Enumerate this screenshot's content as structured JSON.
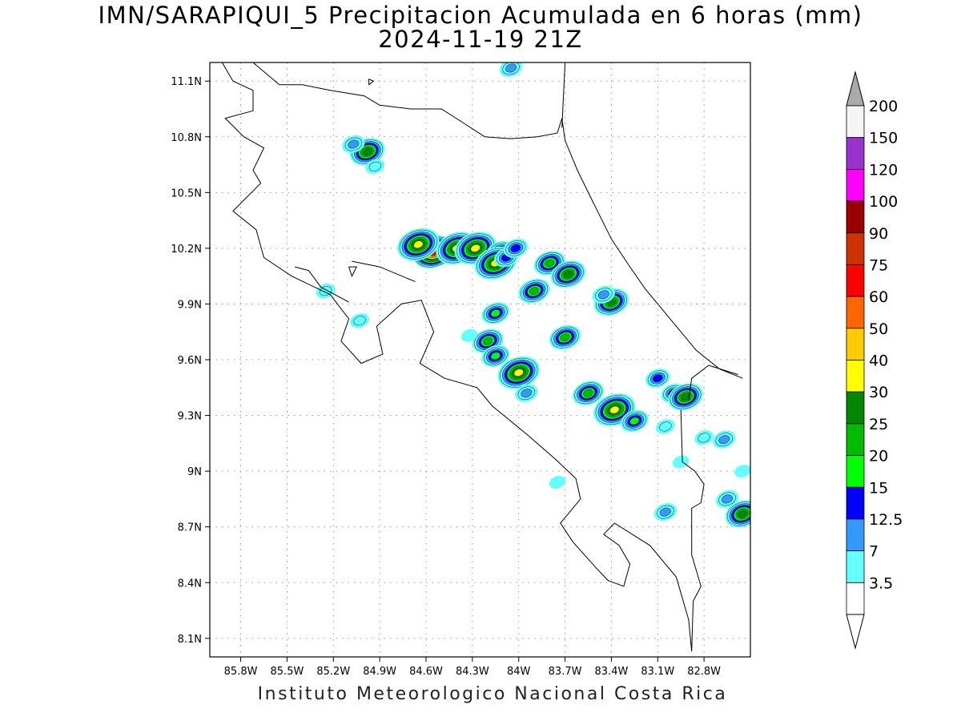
{
  "title": {
    "line1": "IMN/SARAPIQUI_5 Precipitacion Acumulada en 6 horas (mm)",
    "line2": "2024-11-19 21Z"
  },
  "footer": "Instituto Meteorologico Nacional Costa Rica",
  "map": {
    "lon_range": [
      -86.0,
      -82.5
    ],
    "lat_range": [
      8.0,
      11.2
    ],
    "lon_ticks": [
      {
        "value": -85.8,
        "label": "85.8W"
      },
      {
        "value": -85.5,
        "label": "85.5W"
      },
      {
        "value": -85.2,
        "label": "85.2W"
      },
      {
        "value": -84.9,
        "label": "84.9W"
      },
      {
        "value": -84.6,
        "label": "84.6W"
      },
      {
        "value": -84.3,
        "label": "84.3W"
      },
      {
        "value": -84.0,
        "label": "84W"
      },
      {
        "value": -83.7,
        "label": "83.7W"
      },
      {
        "value": -83.4,
        "label": "83.4W"
      },
      {
        "value": -83.1,
        "label": "83.1W"
      },
      {
        "value": -82.8,
        "label": "82.8W"
      }
    ],
    "lat_ticks": [
      {
        "value": 11.1,
        "label": "11.1N"
      },
      {
        "value": 10.8,
        "label": "10.8N"
      },
      {
        "value": 10.5,
        "label": "10.5N"
      },
      {
        "value": 10.2,
        "label": "10.2N"
      },
      {
        "value": 9.9,
        "label": "9.9N"
      },
      {
        "value": 9.6,
        "label": "9.6N"
      },
      {
        "value": 9.3,
        "label": "9.3N"
      },
      {
        "value": 9.0,
        "label": "9N"
      },
      {
        "value": 8.7,
        "label": "8.7N"
      },
      {
        "value": 8.4,
        "label": "8.4N"
      },
      {
        "value": 8.1,
        "label": "8.1N"
      }
    ],
    "grid": true
  },
  "colorbar": {
    "levels": [
      {
        "label": "200",
        "color": "#f5f5f5"
      },
      {
        "label": "150",
        "color": "#9933cc"
      },
      {
        "label": "120",
        "color": "#ff00ff"
      },
      {
        "label": "100",
        "color": "#990000"
      },
      {
        "label": "90",
        "color": "#cc3300"
      },
      {
        "label": "75",
        "color": "#ff0000"
      },
      {
        "label": "60",
        "color": "#ff6600"
      },
      {
        "label": "50",
        "color": "#ffcc00"
      },
      {
        "label": "40",
        "color": "#ffff00"
      },
      {
        "label": "30",
        "color": "#008800"
      },
      {
        "label": "25",
        "color": "#00bb00"
      },
      {
        "label": "20",
        "color": "#00ff00"
      },
      {
        "label": "15",
        "color": "#0000ff"
      },
      {
        "label": "12.5",
        "color": "#3399ff"
      },
      {
        "label": "7",
        "color": "#66ffff"
      },
      {
        "label": "3.5",
        "color": "#ffffff"
      }
    ],
    "top_arrow_color": "#aaaaaa",
    "bottom_arrow_color": "#ffffff"
  },
  "precip_cells": [
    {
      "lon": -84.55,
      "lat": 10.18,
      "value": 75
    },
    {
      "lon": -84.4,
      "lat": 10.2,
      "value": 40
    },
    {
      "lon": -84.28,
      "lat": 10.2,
      "value": 40
    },
    {
      "lon": -84.65,
      "lat": 10.22,
      "value": 40
    },
    {
      "lon": -84.12,
      "lat": 10.18,
      "value": 20
    },
    {
      "lon": -84.15,
      "lat": 10.12,
      "value": 40
    },
    {
      "lon": -84.08,
      "lat": 10.15,
      "value": 15
    },
    {
      "lon": -84.02,
      "lat": 10.2,
      "value": 15
    },
    {
      "lon": -83.8,
      "lat": 10.12,
      "value": 25
    },
    {
      "lon": -83.68,
      "lat": 10.06,
      "value": 30
    },
    {
      "lon": -83.9,
      "lat": 9.97,
      "value": 25
    },
    {
      "lon": -84.98,
      "lat": 10.72,
      "value": 30
    },
    {
      "lon": -85.07,
      "lat": 10.76,
      "value": 12.5
    },
    {
      "lon": -84.93,
      "lat": 10.64,
      "value": 7
    },
    {
      "lon": -84.05,
      "lat": 11.17,
      "value": 12.5
    },
    {
      "lon": -83.4,
      "lat": 9.91,
      "value": 30
    },
    {
      "lon": -83.45,
      "lat": 9.95,
      "value": 12.5
    },
    {
      "lon": -84.15,
      "lat": 9.85,
      "value": 20
    },
    {
      "lon": -84.2,
      "lat": 9.7,
      "value": 25
    },
    {
      "lon": -84.15,
      "lat": 9.62,
      "value": 20
    },
    {
      "lon": -84.0,
      "lat": 9.53,
      "value": 40
    },
    {
      "lon": -83.95,
      "lat": 9.42,
      "value": 12.5
    },
    {
      "lon": -83.7,
      "lat": 9.72,
      "value": 25
    },
    {
      "lon": -83.55,
      "lat": 9.42,
      "value": 25
    },
    {
      "lon": -83.38,
      "lat": 9.33,
      "value": 40
    },
    {
      "lon": -83.25,
      "lat": 9.27,
      "value": 20
    },
    {
      "lon": -83.0,
      "lat": 9.42,
      "value": 15
    },
    {
      "lon": -83.1,
      "lat": 9.5,
      "value": 15
    },
    {
      "lon": -82.92,
      "lat": 9.4,
      "value": 30
    },
    {
      "lon": -83.05,
      "lat": 9.24,
      "value": 7
    },
    {
      "lon": -82.8,
      "lat": 9.18,
      "value": 7
    },
    {
      "lon": -82.67,
      "lat": 9.17,
      "value": 12.5
    },
    {
      "lon": -82.55,
      "lat": 8.77,
      "value": 30
    },
    {
      "lon": -82.65,
      "lat": 8.85,
      "value": 12.5
    },
    {
      "lon": -83.05,
      "lat": 8.78,
      "value": 12.5
    },
    {
      "lon": -85.03,
      "lat": 9.81,
      "value": 7
    },
    {
      "lon": -85.25,
      "lat": 9.97,
      "value": 7
    },
    {
      "lon": -84.32,
      "lat": 9.73,
      "value": 3.5
    },
    {
      "lon": -83.75,
      "lat": 8.94,
      "value": 3.5
    },
    {
      "lon": -82.95,
      "lat": 9.05,
      "value": 3.5
    },
    {
      "lon": -82.55,
      "lat": 9.0,
      "value": 3.5
    }
  ],
  "coastline": [
    [
      [
        -85.92,
        11.2
      ],
      [
        -85.85,
        11.1
      ],
      [
        -85.72,
        11.05
      ],
      [
        -85.72,
        10.94
      ],
      [
        -85.9,
        10.9
      ],
      [
        -85.78,
        10.8
      ],
      [
        -85.65,
        10.74
      ],
      [
        -85.72,
        10.62
      ],
      [
        -85.67,
        10.55
      ],
      [
        -85.85,
        10.4
      ],
      [
        -85.7,
        10.3
      ],
      [
        -85.65,
        10.15
      ],
      [
        -85.47,
        10.05
      ],
      [
        -85.22,
        9.95
      ],
      [
        -85.1,
        9.82
      ],
      [
        -85.15,
        9.7
      ],
      [
        -85.02,
        9.58
      ],
      [
        -84.88,
        9.63
      ],
      [
        -84.92,
        9.78
      ],
      [
        -84.76,
        9.9
      ],
      [
        -84.63,
        9.92
      ],
      [
        -84.55,
        9.75
      ],
      [
        -84.64,
        9.58
      ],
      [
        -84.48,
        9.5
      ],
      [
        -84.27,
        9.45
      ],
      [
        -84.17,
        9.35
      ],
      [
        -83.95,
        9.2
      ],
      [
        -83.77,
        9.07
      ],
      [
        -83.63,
        8.96
      ],
      [
        -83.6,
        8.85
      ],
      [
        -83.73,
        8.72
      ],
      [
        -83.65,
        8.62
      ],
      [
        -83.5,
        8.48
      ],
      [
        -83.42,
        8.41
      ],
      [
        -83.32,
        8.38
      ],
      [
        -83.28,
        8.5
      ],
      [
        -83.35,
        8.6
      ],
      [
        -83.45,
        8.66
      ],
      [
        -83.38,
        8.72
      ],
      [
        -83.15,
        8.6
      ],
      [
        -82.98,
        8.43
      ],
      [
        -82.9,
        8.2
      ],
      [
        -82.88,
        8.03
      ]
    ],
    [
      [
        -85.45,
        10.1
      ],
      [
        -85.36,
        10.08
      ],
      [
        -85.28,
        9.99
      ],
      [
        -85.1,
        9.91
      ]
    ],
    [
      [
        -84.67,
        10.02
      ],
      [
        -84.9,
        10.1
      ],
      [
        -85.08,
        10.13
      ]
    ],
    [
      [
        -85.1,
        10.1
      ],
      [
        -85.08,
        10.05
      ],
      [
        -85.05,
        10.1
      ],
      [
        -85.1,
        10.1
      ]
    ],
    [
      [
        -85.72,
        11.2
      ],
      [
        -85.55,
        11.08
      ],
      [
        -85.4,
        11.08
      ],
      [
        -85.22,
        11.05
      ],
      [
        -85.0,
        11.02
      ],
      [
        -84.9,
        10.97
      ],
      [
        -84.7,
        10.95
      ],
      [
        -84.5,
        10.95
      ],
      [
        -84.35,
        10.87
      ],
      [
        -84.22,
        10.8
      ],
      [
        -84.05,
        10.79
      ],
      [
        -83.88,
        10.8
      ],
      [
        -83.75,
        10.82
      ],
      [
        -83.72,
        10.9
      ],
      [
        -83.7,
        10.78
      ],
      [
        -83.62,
        10.62
      ],
      [
        -83.52,
        10.45
      ],
      [
        -83.4,
        10.25
      ],
      [
        -83.28,
        10.1
      ],
      [
        -83.18,
        9.98
      ],
      [
        -83.0,
        9.8
      ],
      [
        -82.85,
        9.65
      ],
      [
        -82.7,
        9.55
      ],
      [
        -82.55,
        9.5
      ]
    ],
    [
      [
        -82.95,
        9.33
      ],
      [
        -82.94,
        9.05
      ],
      [
        -82.86,
        9.0
      ],
      [
        -82.8,
        8.93
      ],
      [
        -82.82,
        8.83
      ],
      [
        -82.88,
        8.8
      ],
      [
        -82.88,
        8.55
      ],
      [
        -82.82,
        8.38
      ],
      [
        -82.87,
        8.3
      ],
      [
        -82.88,
        8.03
      ]
    ],
    [
      [
        -82.58,
        9.52
      ],
      [
        -82.77,
        9.57
      ],
      [
        -82.88,
        9.5
      ],
      [
        -82.9,
        9.38
      ]
    ],
    [
      [
        -83.72,
        10.85
      ],
      [
        -83.7,
        11.2
      ]
    ],
    [
      [
        -84.97,
        11.08
      ],
      [
        -84.94,
        11.1
      ],
      [
        -84.97,
        11.11
      ],
      [
        -84.97,
        11.08
      ]
    ],
    [
      [
        -85.92,
        11.2
      ],
      [
        -86.0,
        11.2
      ]
    ]
  ]
}
